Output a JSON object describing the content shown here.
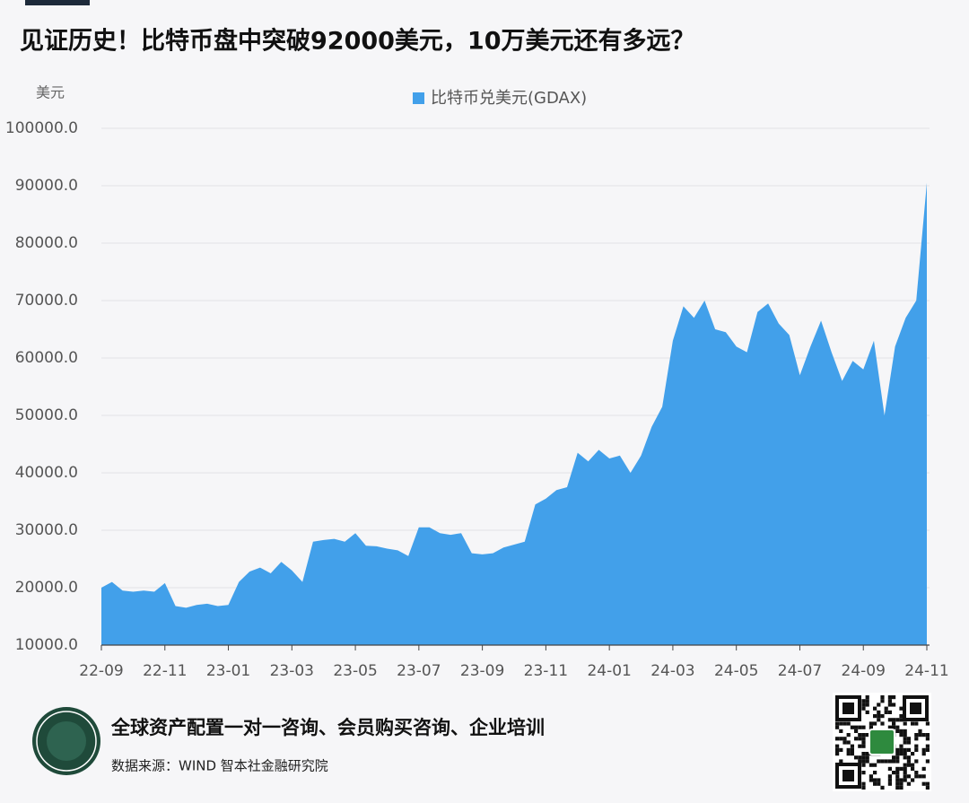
{
  "chart_data": {
    "type": "area",
    "title": "见证历史！比特币盘中突破92000美元，10万美元还有多远？",
    "y_label": "美元",
    "legend_position": "top",
    "footer": {
      "slogan": "全球资产配置一对一咨询、会员购买咨询、企业培训",
      "source": "数据来源：WIND 智本社金融研究院"
    },
    "categories": [
      "22-09",
      null,
      null,
      null,
      null,
      null,
      "22-11",
      null,
      null,
      null,
      null,
      null,
      "23-01",
      null,
      null,
      null,
      null,
      null,
      "23-03",
      null,
      null,
      null,
      null,
      null,
      "23-05",
      null,
      null,
      null,
      null,
      null,
      "23-07",
      null,
      null,
      null,
      null,
      null,
      "23-09",
      null,
      null,
      null,
      null,
      null,
      "23-11",
      null,
      null,
      null,
      null,
      null,
      "24-01",
      null,
      null,
      null,
      null,
      null,
      "24-03",
      null,
      null,
      null,
      null,
      null,
      "24-05",
      null,
      null,
      null,
      null,
      null,
      "24-07",
      null,
      null,
      null,
      null,
      null,
      "24-09",
      null,
      null,
      null,
      null,
      null,
      "24-11"
    ],
    "series": [
      {
        "name": "比特币兑美元(GDAX)",
        "color": "#42a0ea",
        "values": [
          20000,
          21000,
          19500,
          19300,
          19500,
          19300,
          20800,
          16800,
          16500,
          17000,
          17200,
          16800,
          17000,
          21000,
          22800,
          23500,
          22500,
          24500,
          23000,
          21000,
          28000,
          28300,
          28500,
          28000,
          29500,
          27300,
          27200,
          26800,
          26500,
          25500,
          30500,
          30500,
          29500,
          29200,
          29500,
          26000,
          25800,
          26000,
          27000,
          27500,
          28000,
          34500,
          35500,
          37000,
          37500,
          43500,
          42000,
          44000,
          42500,
          43000,
          40000,
          43000,
          48000,
          51500,
          63000,
          69000,
          67000,
          70000,
          65000,
          64500,
          62000,
          61000,
          68000,
          69500,
          66000,
          64000,
          57000,
          62000,
          66500,
          61000,
          56000,
          59500,
          58000,
          63000,
          50000,
          62000,
          67000,
          70000,
          90500
        ]
      }
    ],
    "ylim": [
      10000,
      100000
    ],
    "yticks": [
      {
        "value": 10000,
        "label": "10000.0"
      },
      {
        "value": 20000,
        "label": "20000.0"
      },
      {
        "value": 30000,
        "label": "30000.0"
      },
      {
        "value": 40000,
        "label": "40000.0"
      },
      {
        "value": 50000,
        "label": "50000.0"
      },
      {
        "value": 60000,
        "label": "60000.0"
      },
      {
        "value": 70000,
        "label": "70000.0"
      },
      {
        "value": 80000,
        "label": "80000.0"
      },
      {
        "value": 90000,
        "label": "90000.0"
      },
      {
        "value": 100000,
        "label": "100000.0"
      }
    ],
    "grid": true
  }
}
